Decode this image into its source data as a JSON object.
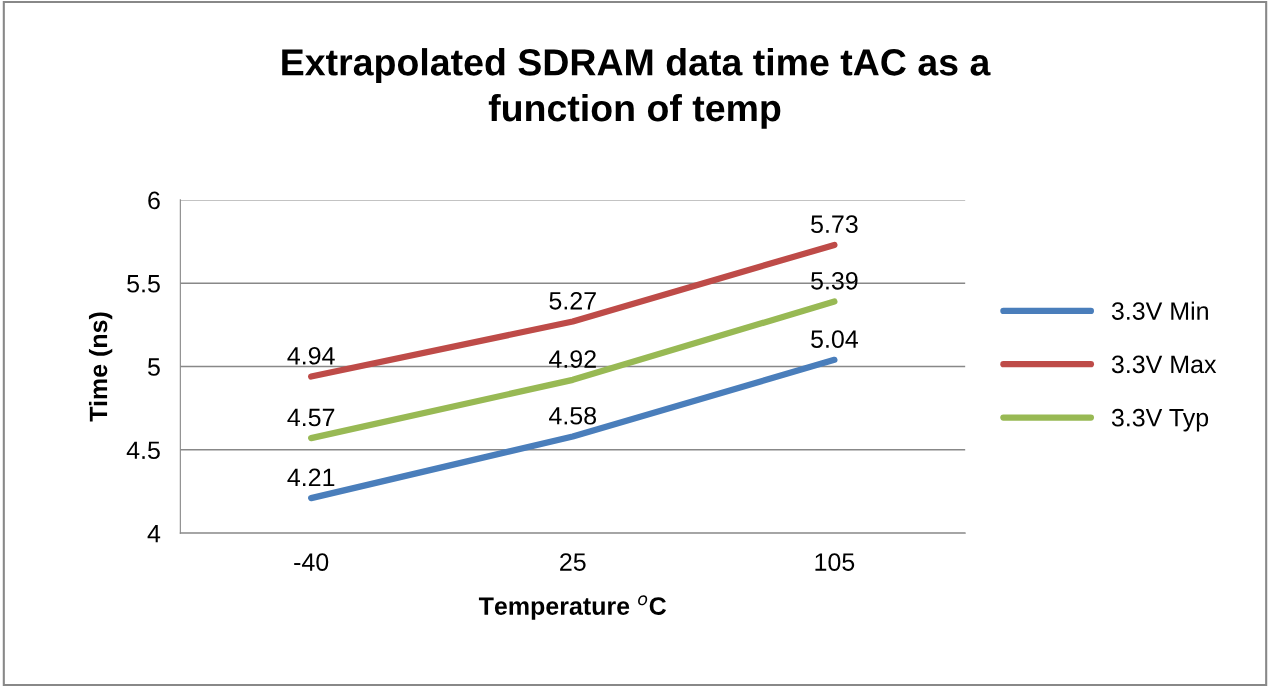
{
  "chart_data": {
    "type": "line",
    "title": "Extrapolated SDRAM data time tAC as a function of temp",
    "xlabel": "Temperature $^{o}$C",
    "ylabel": "Time (ns)",
    "categories": [
      "-40",
      "25",
      "105"
    ],
    "series": [
      {
        "name": "3.3V Min",
        "color": "#4a7ebb",
        "values": [
          4.21,
          4.58,
          5.04
        ]
      },
      {
        "name": "3.3V Max",
        "color": "#be4b48",
        "values": [
          4.94,
          5.27,
          5.73
        ]
      },
      {
        "name": "3.3V Typ",
        "color": "#98b954",
        "values": [
          4.57,
          4.92,
          5.39
        ]
      }
    ],
    "ylim": [
      4,
      6
    ],
    "yticks": [
      4,
      4.5,
      5,
      5.5,
      6
    ],
    "grid": "y",
    "legend": "right",
    "data_labels": true,
    "marker": "none",
    "line_style": "solid"
  }
}
